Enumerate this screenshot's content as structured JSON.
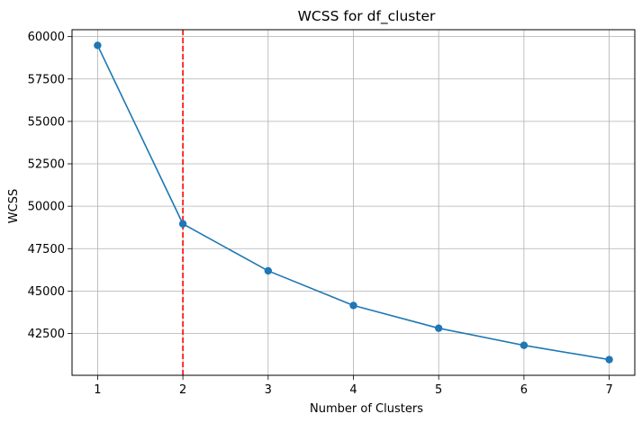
{
  "chart_data": {
    "type": "line",
    "title": "WCSS for df_cluster",
    "xlabel": "Number of Clusters",
    "ylabel": "WCSS",
    "x": [
      1,
      2,
      3,
      4,
      5,
      6,
      7
    ],
    "series": [
      {
        "name": "WCSS",
        "values": [
          59480,
          48960,
          46190,
          44150,
          42810,
          41800,
          40960
        ],
        "color": "#1f77b4",
        "marker": "circle"
      }
    ],
    "xticks": [
      1,
      2,
      3,
      4,
      5,
      6,
      7
    ],
    "xtick_labels": [
      "1",
      "2",
      "3",
      "4",
      "5",
      "6",
      "7"
    ],
    "yticks": [
      42500,
      45000,
      47500,
      50000,
      52500,
      55000,
      57500,
      60000
    ],
    "ytick_labels": [
      "42500",
      "45000",
      "47500",
      "50000",
      "52500",
      "55000",
      "57500",
      "60000"
    ],
    "xlim": [
      0.7,
      7.3
    ],
    "ylim": [
      40034,
      60406
    ],
    "grid": true,
    "reference_line": {
      "orientation": "vertical",
      "x": 2,
      "color": "#ff0000",
      "style": "dashed"
    }
  }
}
